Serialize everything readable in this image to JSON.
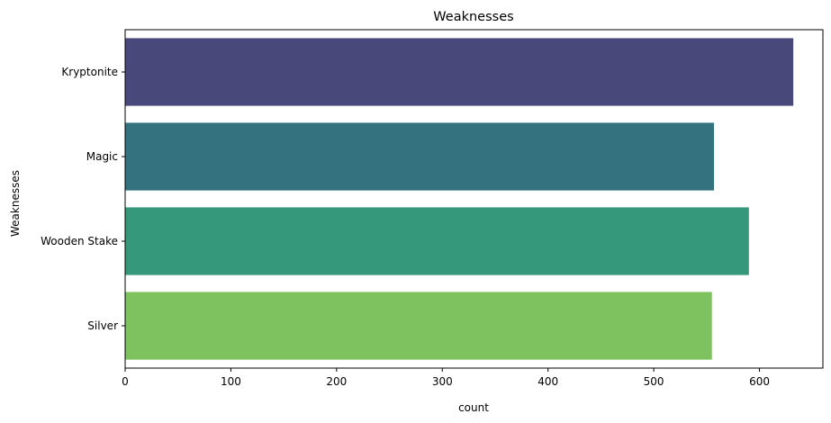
{
  "chart_data": {
    "type": "bar",
    "orientation": "horizontal",
    "title": "Weaknesses",
    "xlabel": "count",
    "ylabel": "Weaknesses",
    "categories": [
      "Kryptonite",
      "Magic",
      "Wooden Stake",
      "Silver"
    ],
    "values": [
      632,
      557,
      590,
      555
    ],
    "colors": [
      "#48487b",
      "#33727e",
      "#35987b",
      "#7dc25f"
    ],
    "xlim": [
      0,
      660
    ],
    "xticks": [
      0,
      100,
      200,
      300,
      400,
      500,
      600
    ],
    "grid": false,
    "legend": "none"
  }
}
